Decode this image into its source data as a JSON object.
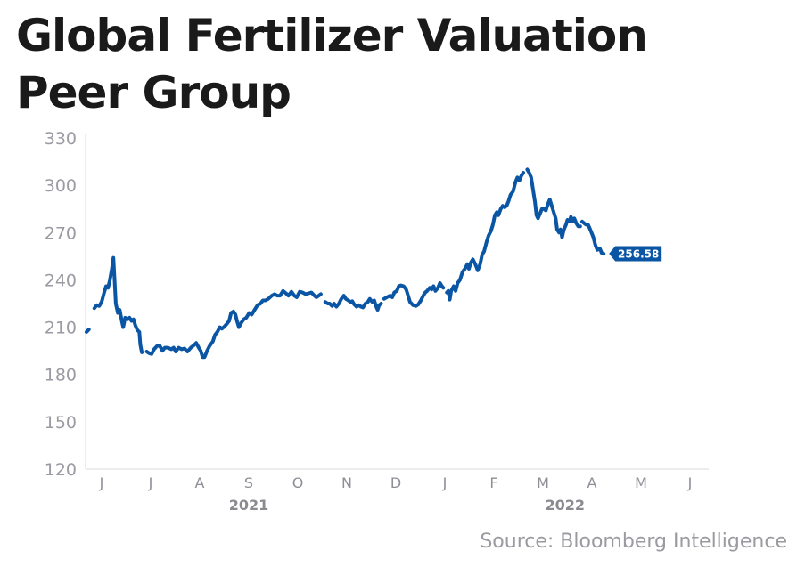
{
  "title_lines": [
    "Global Fertilizer Valuation",
    "Peer Group"
  ],
  "source": "Source: Bloomberg Intelligence",
  "colors": {
    "line": "#0b56a4",
    "axis": "#e0e0e0",
    "label_bg": "#0b56a4"
  },
  "chart_data": {
    "type": "line",
    "title": "Global Fertilizer Valuation Peer Group",
    "xlabel": "",
    "ylabel": "",
    "ylim": [
      120,
      330
    ],
    "yticks": [
      120,
      150,
      180,
      210,
      240,
      270,
      300,
      330
    ],
    "x_unit": "months since June 2021",
    "xlim": [
      -0.33,
      12.4
    ],
    "xticks": [
      {
        "t": 0,
        "label": "J"
      },
      {
        "t": 1,
        "label": "J"
      },
      {
        "t": 2,
        "label": "A"
      },
      {
        "t": 3,
        "label": "S"
      },
      {
        "t": 4,
        "label": "O"
      },
      {
        "t": 5,
        "label": "N"
      },
      {
        "t": 6,
        "label": "D"
      },
      {
        "t": 7,
        "label": "J"
      },
      {
        "t": 8,
        "label": "F"
      },
      {
        "t": 9,
        "label": "M"
      },
      {
        "t": 10,
        "label": "A"
      },
      {
        "t": 11,
        "label": "M"
      },
      {
        "t": 12,
        "label": "J"
      }
    ],
    "year_labels": [
      {
        "t": 3,
        "label": "2021"
      },
      {
        "t": 9.45,
        "label": "2022"
      }
    ],
    "grid": false,
    "legend": "none",
    "last_value_label": "256.58",
    "series": [
      {
        "name": "Global Fertilizer Valuation Peer Group",
        "segments": [
          [
            [
              -0.31,
              207
            ],
            [
              -0.26,
              208.5
            ]
          ],
          [
            [
              -0.15,
              222
            ],
            [
              -0.1,
              224
            ],
            [
              -0.05,
              223.5
            ],
            [
              0.0,
              226
            ],
            [
              0.05,
              232
            ],
            [
              0.09,
              236
            ],
            [
              0.13,
              235
            ],
            [
              0.17,
              240
            ],
            [
              0.21,
              247
            ],
            [
              0.24,
              254
            ],
            [
              0.27,
              237
            ],
            [
              0.29,
              225
            ],
            [
              0.33,
              219
            ],
            [
              0.37,
              221
            ],
            [
              0.41,
              214
            ],
            [
              0.44,
              210
            ],
            [
              0.48,
              216
            ],
            [
              0.53,
              215
            ],
            [
              0.57,
              216
            ],
            [
              0.61,
              214
            ],
            [
              0.65,
              215
            ],
            [
              0.69,
              211
            ],
            [
              0.73,
              208
            ],
            [
              0.77,
              207
            ],
            [
              0.79,
              199
            ],
            [
              0.82,
              194
            ]
          ],
          [
            [
              0.92,
              194.5
            ],
            [
              0.97,
              193.5
            ],
            [
              1.02,
              193
            ],
            [
              1.07,
              196
            ],
            [
              1.13,
              198
            ],
            [
              1.18,
              198.5
            ],
            [
              1.24,
              195
            ],
            [
              1.29,
              197
            ],
            [
              1.35,
              197
            ],
            [
              1.42,
              196
            ],
            [
              1.47,
              197
            ],
            [
              1.51,
              194.5
            ],
            [
              1.57,
              197
            ],
            [
              1.63,
              196
            ],
            [
              1.69,
              196.5
            ],
            [
              1.75,
              194.5
            ],
            [
              1.82,
              197
            ],
            [
              1.88,
              198.5
            ],
            [
              1.93,
              200
            ],
            [
              1.98,
              197
            ],
            [
              2.02,
              195
            ],
            [
              2.06,
              191
            ],
            [
              2.1,
              191
            ],
            [
              2.15,
              195
            ],
            [
              2.2,
              198
            ],
            [
              2.27,
              201
            ],
            [
              2.31,
              205
            ],
            [
              2.36,
              207
            ],
            [
              2.41,
              210
            ],
            [
              2.45,
              209
            ],
            [
              2.49,
              210
            ],
            [
              2.55,
              212
            ],
            [
              2.6,
              214
            ],
            [
              2.64,
              219
            ],
            [
              2.69,
              220
            ],
            [
              2.73,
              218
            ],
            [
              2.76,
              214
            ],
            [
              2.8,
              210
            ],
            [
              2.85,
              213
            ],
            [
              2.9,
              215
            ],
            [
              2.95,
              216
            ],
            [
              3.01,
              219
            ],
            [
              3.06,
              218
            ],
            [
              3.12,
              221
            ],
            [
              3.18,
              224
            ],
            [
              3.24,
              225
            ],
            [
              3.29,
              227
            ],
            [
              3.34,
              227
            ],
            [
              3.4,
              228
            ],
            [
              3.47,
              230
            ],
            [
              3.53,
              231
            ],
            [
              3.58,
              230
            ],
            [
              3.64,
              230
            ],
            [
              3.7,
              233
            ],
            [
              3.76,
              231.5
            ],
            [
              3.81,
              230
            ],
            [
              3.87,
              232.5
            ],
            [
              3.93,
              230
            ],
            [
              3.98,
              229
            ],
            [
              4.04,
              232.5
            ],
            [
              4.1,
              232
            ],
            [
              4.16,
              231
            ],
            [
              4.22,
              231.5
            ],
            [
              4.28,
              232
            ],
            [
              4.34,
              230
            ],
            [
              4.38,
              229
            ],
            [
              4.43,
              230
            ],
            [
              4.47,
              231
            ]
          ],
          [
            [
              4.56,
              226
            ],
            [
              4.61,
              225
            ],
            [
              4.65,
              225
            ],
            [
              4.7,
              223.5
            ],
            [
              4.74,
              225
            ],
            [
              4.79,
              223
            ],
            [
              4.84,
              225
            ],
            [
              4.89,
              228
            ],
            [
              4.94,
              230
            ],
            [
              4.98,
              228
            ],
            [
              5.03,
              227
            ],
            [
              5.08,
              226
            ]
          ],
          [
            [
              5.11,
              226.5
            ],
            [
              5.15,
              224.5
            ],
            [
              5.2,
              223
            ],
            [
              5.24,
              224
            ],
            [
              5.29,
              223
            ],
            [
              5.33,
              222.5
            ],
            [
              5.38,
              225
            ],
            [
              5.43,
              226
            ],
            [
              5.47,
              228
            ],
            [
              5.52,
              226
            ],
            [
              5.56,
              227
            ],
            [
              5.6,
              223
            ],
            [
              5.63,
              221
            ],
            [
              5.66,
              224
            ],
            [
              5.7,
              225
            ]
          ],
          [
            [
              5.76,
              228
            ],
            [
              5.82,
              229
            ],
            [
              5.88,
              230
            ],
            [
              5.93,
              229
            ],
            [
              5.97,
              232
            ],
            [
              6.02,
              233
            ],
            [
              6.06,
              236
            ],
            [
              6.1,
              236.5
            ],
            [
              6.16,
              236
            ],
            [
              6.21,
              234
            ],
            [
              6.25,
              230
            ],
            [
              6.29,
              226
            ],
            [
              6.35,
              224
            ],
            [
              6.41,
              223.5
            ],
            [
              6.46,
              224.5
            ],
            [
              6.51,
              227
            ],
            [
              6.56,
              230
            ],
            [
              6.6,
              232
            ],
            [
              6.64,
              233
            ],
            [
              6.69,
              235
            ],
            [
              6.73,
              234
            ],
            [
              6.77,
              236
            ],
            [
              6.81,
              233
            ],
            [
              6.86,
              235
            ],
            [
              6.9,
              238
            ],
            [
              6.94,
              236
            ],
            [
              6.97,
              235
            ]
          ],
          [
            [
              7.04,
              232
            ],
            [
              7.07,
              233
            ],
            [
              7.1,
              227.5
            ],
            [
              7.13,
              233
            ],
            [
              7.18,
              236
            ],
            [
              7.22,
              233
            ],
            [
              7.26,
              238
            ],
            [
              7.31,
              240
            ],
            [
              7.36,
              245
            ],
            [
              7.41,
              247
            ],
            [
              7.46,
              250
            ],
            [
              7.49,
              247
            ],
            [
              7.53,
              251
            ],
            [
              7.57,
              253
            ],
            [
              7.62,
              250
            ],
            [
              7.67,
              246
            ],
            [
              7.72,
              250
            ],
            [
              7.76,
              256
            ],
            [
              7.8,
              258
            ],
            [
              7.85,
              264
            ],
            [
              7.89,
              268
            ],
            [
              7.94,
              271
            ],
            [
              7.98,
              275
            ],
            [
              8.02,
              281
            ],
            [
              8.06,
              283
            ],
            [
              8.09,
              281
            ],
            [
              8.14,
              285
            ],
            [
              8.18,
              287
            ],
            [
              8.22,
              286
            ],
            [
              8.26,
              287
            ],
            [
              8.3,
              290
            ],
            [
              8.34,
              294
            ],
            [
              8.39,
              296
            ],
            [
              8.44,
              302
            ],
            [
              8.48,
              305
            ],
            [
              8.52,
              303
            ],
            [
              8.56,
              306
            ],
            [
              8.6,
              308
            ]
          ],
          [
            [
              8.68,
              310
            ],
            [
              8.72,
              308
            ],
            [
              8.76,
              305
            ],
            [
              8.8,
              297
            ],
            [
              8.84,
              289
            ],
            [
              8.87,
              281
            ],
            [
              8.9,
              279
            ],
            [
              8.94,
              282
            ],
            [
              8.98,
              285
            ],
            [
              9.02,
              285
            ],
            [
              9.06,
              284
            ],
            [
              9.1,
              288
            ],
            [
              9.14,
              291
            ],
            [
              9.18,
              287
            ],
            [
              9.22,
              283
            ],
            [
              9.26,
              279
            ],
            [
              9.29,
              272
            ],
            [
              9.33,
              270
            ],
            [
              9.36,
              272
            ],
            [
              9.39,
              267
            ],
            [
              9.43,
              272
            ],
            [
              9.47,
              275
            ],
            [
              9.5,
              278
            ],
            [
              9.54,
              277
            ],
            [
              9.57,
              280
            ],
            [
              9.6,
              277
            ],
            [
              9.64,
              279
            ],
            [
              9.68,
              276
            ],
            [
              9.72,
              274
            ],
            [
              9.76,
              274
            ]
          ],
          [
            [
              9.8,
              277
            ],
            [
              9.84,
              276
            ],
            [
              9.88,
              275
            ],
            [
              9.92,
              275
            ],
            [
              9.95,
              273
            ],
            [
              9.99,
              270
            ],
            [
              10.03,
              267
            ],
            [
              10.07,
              262
            ],
            [
              10.11,
              259
            ],
            [
              10.16,
              260
            ],
            [
              10.2,
              257
            ],
            [
              10.24,
              256.58
            ]
          ]
        ]
      }
    ]
  }
}
